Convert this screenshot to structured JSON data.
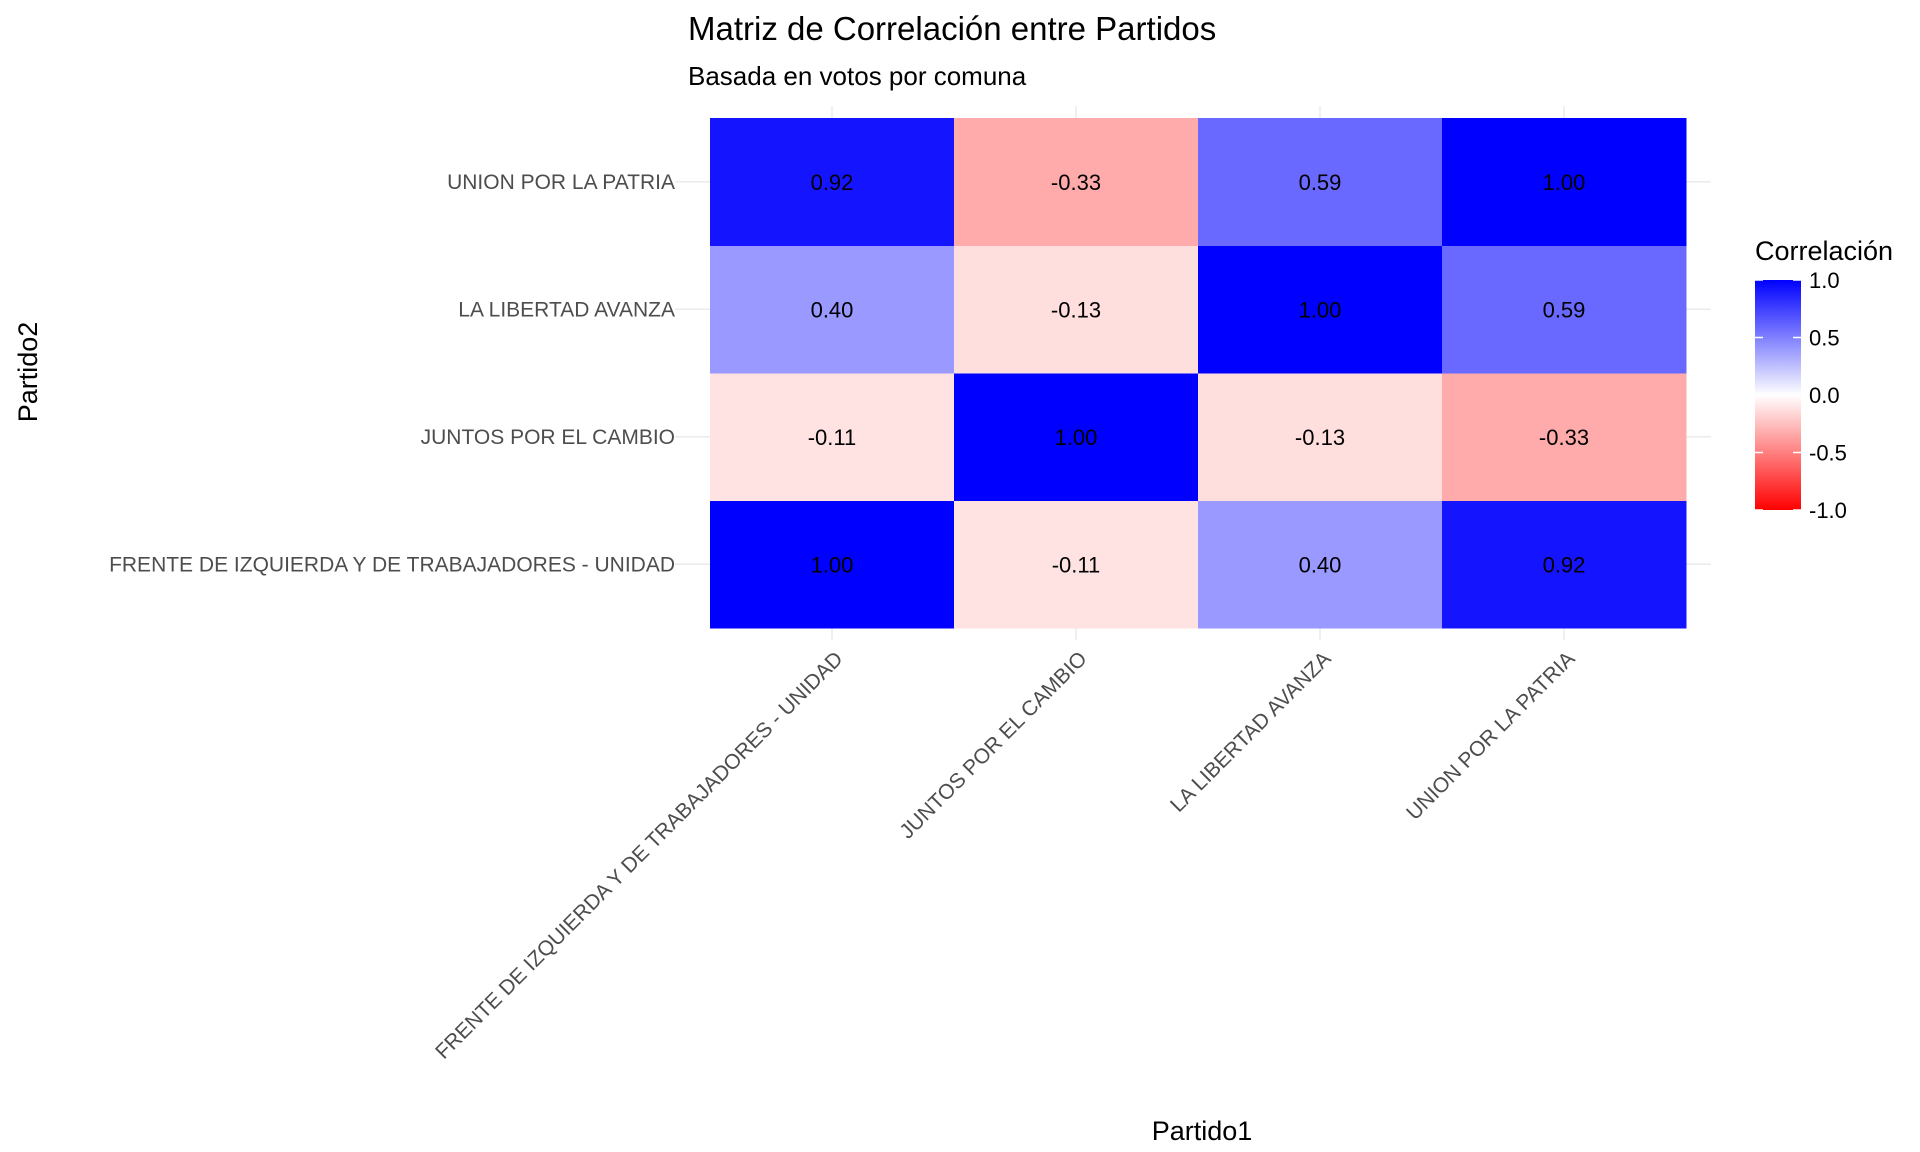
{
  "chart_data": {
    "type": "heatmap",
    "title": "Matriz de Correlación entre Partidos",
    "subtitle": "Basada en votos por comuna",
    "xlabel": "Partido1",
    "ylabel": "Partido2",
    "x_categories": [
      "FRENTE DE IZQUIERDA Y DE TRABAJADORES - UNIDAD",
      "JUNTOS POR EL CAMBIO",
      "LA LIBERTAD AVANZA",
      "UNION POR LA PATRIA"
    ],
    "y_categories": [
      "FRENTE DE IZQUIERDA Y DE TRABAJADORES - UNIDAD",
      "JUNTOS POR EL CAMBIO",
      "LA LIBERTAD AVANZA",
      "UNION POR LA PATRIA"
    ],
    "values": [
      [
        1.0,
        -0.11,
        0.4,
        0.92
      ],
      [
        -0.11,
        1.0,
        -0.13,
        -0.33
      ],
      [
        0.4,
        -0.13,
        1.0,
        0.59
      ],
      [
        0.92,
        -0.33,
        0.59,
        1.0
      ]
    ],
    "value_format": "0.00",
    "legend": {
      "title": "Correlación",
      "position": "right",
      "limits": [
        -1,
        1
      ],
      "tick_values": [
        1.0,
        0.5,
        0.0,
        -0.5,
        -1.0
      ],
      "tick_labels": [
        "1.0",
        "0.5",
        "0.0",
        "-0.5",
        "-1.0"
      ],
      "low_color": "#ff0000",
      "mid_color": "#ffffff",
      "high_color": "#0000ff"
    },
    "grid": true
  }
}
